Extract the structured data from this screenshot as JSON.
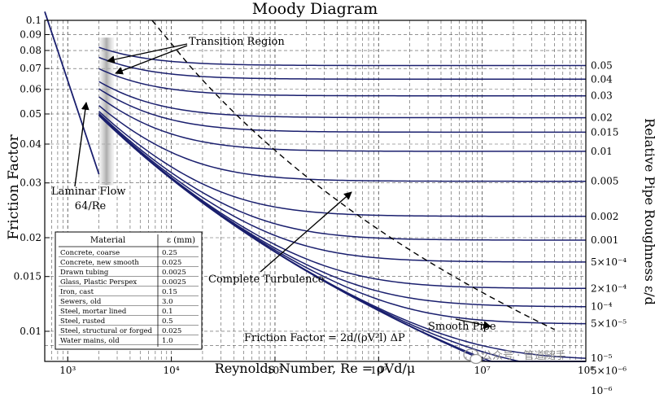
{
  "chart_data": {
    "type": "line",
    "title": "Moody Diagram",
    "xlabel": "Reynolds Number, Re = ρVd/μ",
    "ylabel": "Friction Factor",
    "y2label": "Relative Pipe Roughness ε/d",
    "x_scale": "log",
    "y_scale": "log",
    "xlim": [
      600,
      100000000
    ],
    "ylim": [
      0.008,
      0.1
    ],
    "grid": true,
    "x_ticks": [
      {
        "v": 1000,
        "label": "10³"
      },
      {
        "v": 10000,
        "label": "10⁴"
      },
      {
        "v": 100000,
        "label": "10⁵"
      },
      {
        "v": 1000000,
        "label": "10⁶"
      },
      {
        "v": 10000000,
        "label": "10⁷"
      },
      {
        "v": 100000000,
        "label": "10⁸"
      }
    ],
    "y_ticks": [
      {
        "v": 0.1,
        "label": "0.1"
      },
      {
        "v": 0.09,
        "label": "0.09"
      },
      {
        "v": 0.08,
        "label": "0.08"
      },
      {
        "v": 0.07,
        "label": "0.07"
      },
      {
        "v": 0.06,
        "label": "0.06"
      },
      {
        "v": 0.05,
        "label": "0.05"
      },
      {
        "v": 0.04,
        "label": "0.04"
      },
      {
        "v": 0.03,
        "label": "0.03"
      },
      {
        "v": 0.02,
        "label": "0.02"
      },
      {
        "v": 0.015,
        "label": "0.015"
      },
      {
        "v": 0.01,
        "label": "0.01"
      }
    ],
    "roughness": [
      {
        "value": 0.05,
        "label": "0.05"
      },
      {
        "value": 0.04,
        "label": "0.04"
      },
      {
        "value": 0.03,
        "label": "0.03"
      },
      {
        "value": 0.02,
        "label": "0.02"
      },
      {
        "value": 0.015,
        "label": "0.015"
      },
      {
        "value": 0.01,
        "label": "0.01"
      },
      {
        "value": 0.005,
        "label": "0.005"
      },
      {
        "value": 0.002,
        "label": "0.002"
      },
      {
        "value": 0.001,
        "label": "0.001"
      },
      {
        "value": 0.0005,
        "label": "5×10⁻⁴"
      },
      {
        "value": 0.0002,
        "label": "2×10⁻⁴"
      },
      {
        "value": 0.0001,
        "label": "10⁻⁴"
      },
      {
        "value": 5e-05,
        "label": "5×10⁻⁵"
      },
      {
        "value": 1e-05,
        "label": "10⁻⁵"
      },
      {
        "value": 5e-06,
        "label": "5×10⁻⁶"
      },
      {
        "value": 1e-06,
        "label": "10⁻⁶"
      }
    ],
    "laminar": {
      "x": [
        600,
        2000
      ],
      "y": [
        0.10667,
        0.032
      ],
      "label": "Laminar Flow",
      "formula": "64/Re"
    },
    "transition_region": {
      "x": [
        2000,
        2800
      ],
      "label": "Transition Region"
    },
    "complete_turbulence_label": "Complete Turbulence",
    "smooth_pipe_label": "Smooth Pipe",
    "equation_label": "Friction Factor = 2d/(ρV²l) ΔP",
    "table": {
      "headers": [
        "Material",
        "ε (mm)"
      ],
      "rows": [
        [
          "Concrete, coarse",
          "0.25"
        ],
        [
          "Concrete, new smooth",
          "0.025"
        ],
        [
          "Drawn tubing",
          "0.0025"
        ],
        [
          "Glass, Plastic Perspex",
          "0.0025"
        ],
        [
          "Iron, cast",
          "0.15"
        ],
        [
          "Sewers, old",
          "3.0"
        ],
        [
          "Steel, mortar lined",
          "0.1"
        ],
        [
          "Steel, rusted",
          "0.5"
        ],
        [
          "Steel, structural or forged",
          "0.025"
        ],
        [
          "Water mains, old",
          "1.0"
        ]
      ]
    },
    "colors": {
      "curve": "#1a1f6e",
      "grid": "#555555",
      "axis": "#000000",
      "transition": "#bdbdbd"
    }
  },
  "watermark": "公众号 · 管道随手"
}
